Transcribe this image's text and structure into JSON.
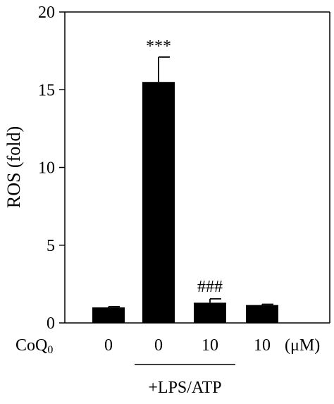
{
  "chart_data": {
    "type": "bar",
    "title": "",
    "xlabel": "",
    "ylabel": "ROS (fold)",
    "ylim": [
      0,
      20
    ],
    "yticks": [
      "0",
      "5",
      "10",
      "15",
      "20"
    ],
    "ytick_values": [
      0,
      5,
      10,
      15,
      20
    ],
    "row_label": "CoQ",
    "row_label_subscript": "0",
    "categories": [
      "0",
      "0",
      "10",
      "10"
    ],
    "unit_label": "(μM)",
    "values": [
      1.0,
      15.5,
      1.3,
      1.15
    ],
    "errors": [
      0.05,
      1.6,
      0.25,
      0.05
    ],
    "annotations": [
      "",
      "***",
      "###",
      ""
    ],
    "group_label": "+LPS/ATP",
    "group_span": [
      1,
      2
    ],
    "bar_color": "#000000",
    "grid": false,
    "legend": "none"
  }
}
